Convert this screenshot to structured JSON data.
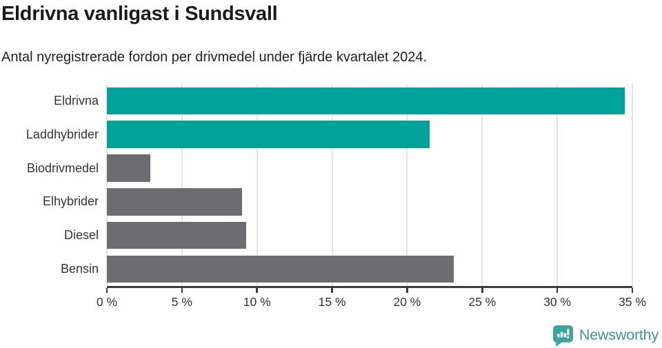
{
  "header": {
    "title": "Eldrivna vanligast i Sundsvall",
    "subtitle": "Antal nyregistrerade fordon per drivmedel under fjärde kvartalet 2024."
  },
  "chart_data": {
    "type": "bar",
    "orientation": "horizontal",
    "title": "Eldrivna vanligast i Sundsvall",
    "subtitle": "Antal nyregistrerade fordon per drivmedel under fjärde kvartalet 2024.",
    "categories": [
      "Eldrivna",
      "Laddhybrider",
      "Biodrivmedel",
      "Elhybrider",
      "Diesel",
      "Bensin"
    ],
    "values": [
      34.5,
      21.5,
      2.9,
      9.0,
      9.3,
      23.1
    ],
    "unit": "%",
    "bar_colors": [
      "#00a29a",
      "#00a29a",
      "#6c6c71",
      "#6c6c71",
      "#6c6c71",
      "#6c6c71"
    ],
    "highlight_color": "#00a29a",
    "default_color": "#6c6c71",
    "xlabel": "",
    "ylabel": "",
    "xlim": [
      0,
      35
    ],
    "x_ticks": [
      0,
      5,
      10,
      15,
      20,
      25,
      30,
      35
    ],
    "x_tick_labels": [
      "0 %",
      "5 %",
      "10 %",
      "15 %",
      "20 %",
      "25 %",
      "30 %",
      "35 %"
    ],
    "grid": "vertical",
    "legend": "none"
  },
  "footer": {
    "brand": "Newsworthy",
    "logo_icon": "bar-chart-speech-bubble-icon",
    "brand_color": "#3e968f",
    "logo_color": "#3ea39c"
  }
}
